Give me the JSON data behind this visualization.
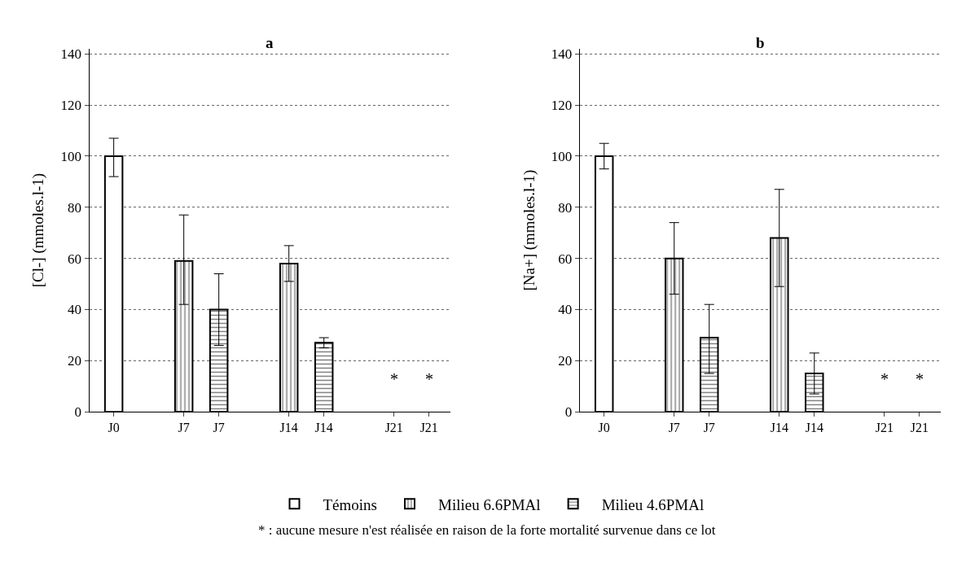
{
  "chart_data": [
    {
      "type": "bar",
      "title": "a",
      "ylabel": "[Cl-] (mmoles.l-1)",
      "categories": [
        "J0",
        null,
        "J7",
        "J7",
        null,
        "J14",
        "J14",
        null,
        "J21",
        "J21"
      ],
      "series": [
        {
          "name": "Témoins",
          "color": "#000000",
          "values": [
            100,
            null,
            null,
            null,
            null,
            null,
            null,
            null,
            null,
            null
          ],
          "errors": [
            [
              92,
              107
            ],
            null,
            null,
            null,
            null,
            null,
            null,
            null,
            null,
            null
          ]
        },
        {
          "name": "Milieu 6.6PMAl",
          "color": "#000000",
          "values": [
            null,
            null,
            59,
            null,
            null,
            58,
            null,
            null,
            null,
            null
          ],
          "errors": [
            null,
            null,
            [
              42,
              77
            ],
            null,
            null,
            [
              51,
              65
            ],
            null,
            null,
            null,
            null
          ]
        },
        {
          "name": "Milieu 4.6PMAl",
          "color": "#000000",
          "values": [
            null,
            null,
            null,
            40,
            null,
            null,
            27,
            null,
            null,
            null
          ],
          "errors": [
            null,
            null,
            null,
            [
              26,
              54
            ],
            null,
            null,
            [
              25,
              29
            ],
            null,
            null,
            null
          ]
        }
      ],
      "ylim": [
        0,
        142
      ],
      "yticks": [
        0,
        20,
        40,
        60,
        80,
        100,
        120,
        140
      ],
      "grid": "y",
      "legend": "bottom",
      "annotations": [
        "*",
        "*",
        "* : aucune mesure n'est réalisée en raison de la forte mortalité survenue dans ce lot"
      ]
    },
    {
      "type": "bar",
      "title": "b",
      "ylabel": "[Na+] (mmoles.l-1)",
      "categories": [
        "J0",
        null,
        "J7",
        "J7",
        null,
        "J14",
        "J14",
        null,
        "J21",
        "J21"
      ],
      "series": [
        {
          "color": "#000000",
          "values": [
            100,
            null,
            null,
            null,
            null,
            null,
            null,
            null,
            null,
            null
          ],
          "errors": [
            [
              95,
              105
            ],
            null,
            null,
            null,
            null,
            null,
            null,
            null,
            null,
            null
          ]
        },
        {
          "color": "#000000",
          "values": [
            null,
            null,
            60,
            null,
            null,
            68,
            null,
            null,
            null,
            null
          ],
          "errors": [
            null,
            null,
            [
              46,
              74
            ],
            null,
            null,
            [
              49,
              87
            ],
            null,
            null,
            null,
            null
          ]
        },
        {
          "color": "#000000",
          "values": [
            null,
            null,
            null,
            29,
            null,
            null,
            15,
            null,
            null,
            null
          ],
          "errors": [
            null,
            null,
            null,
            [
              15,
              42
            ],
            null,
            null,
            [
              7,
              23
            ],
            null,
            null,
            null
          ]
        }
      ],
      "ylim": [
        0,
        142
      ],
      "yticks": [
        0,
        20,
        40,
        60,
        80,
        100,
        120,
        140
      ],
      "grid": "y",
      "legend": "bottom",
      "annotations": [
        "*",
        "*"
      ]
    }
  ]
}
